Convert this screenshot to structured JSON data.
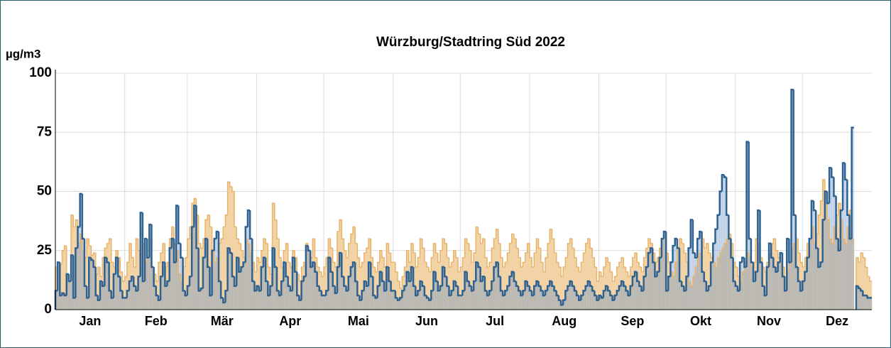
{
  "chart_data": {
    "type": "step-area",
    "title": "Würzburg/Stadtring Süd 2022",
    "y_label": "µg/m3",
    "ylim": [
      0,
      100
    ],
    "yticks": [
      0,
      25,
      50,
      75,
      100
    ],
    "xlim": [
      0,
      365
    ],
    "grid": true,
    "xticks": [
      {
        "value": 0,
        "label": "Jan"
      },
      {
        "value": 31,
        "label": "Feb"
      },
      {
        "value": 59,
        "label": "Mär"
      },
      {
        "value": 90,
        "label": "Apr"
      },
      {
        "value": 120,
        "label": "Mai"
      },
      {
        "value": 151,
        "label": "Jun"
      },
      {
        "value": 181,
        "label": "Jul"
      },
      {
        "value": 212,
        "label": "Aug"
      },
      {
        "value": 243,
        "label": "Sep"
      },
      {
        "value": 273,
        "label": "Okt"
      },
      {
        "value": 304,
        "label": "Nov"
      },
      {
        "value": 334,
        "label": "Dez"
      }
    ],
    "series": [
      {
        "color": "#e8b46c",
        "fill": "#f2d3a6",
        "values": [
          18,
          20,
          19,
          25,
          27,
          15,
          12,
          40,
          35,
          38,
          28,
          32,
          25,
          22,
          30,
          27,
          23,
          24,
          15,
          18,
          14,
          22,
          26,
          28,
          30,
          20,
          18,
          25,
          22,
          16,
          12,
          14,
          20,
          28,
          22,
          18,
          30,
          25,
          35,
          28,
          20,
          22,
          30,
          18,
          15,
          12,
          20,
          24,
          28,
          18,
          20,
          30,
          35,
          28,
          25,
          15,
          12,
          18,
          22,
          30,
          35,
          45,
          47,
          40,
          28,
          26,
          30,
          38,
          40,
          35,
          25,
          20,
          22,
          28,
          30,
          35,
          40,
          54,
          52,
          50,
          35,
          30,
          28,
          25,
          22,
          30,
          28,
          24,
          20,
          16,
          22,
          20,
          25,
          30,
          28,
          18,
          15,
          45,
          38,
          30,
          22,
          18,
          25,
          28,
          20,
          18,
          25,
          22,
          15,
          12,
          18,
          20,
          28,
          25,
          22,
          30,
          22,
          18,
          16,
          14,
          18,
          22,
          30,
          26,
          20,
          18,
          33,
          38,
          30,
          25,
          22,
          28,
          32,
          35,
          28,
          22,
          18,
          20,
          24,
          26,
          30,
          22,
          18,
          16,
          20,
          25,
          22,
          18,
          28,
          24,
          20,
          20,
          16,
          12,
          9,
          14,
          18,
          25,
          20,
          28,
          24,
          18,
          22,
          30,
          26,
          20,
          18,
          16,
          22,
          28,
          24,
          20,
          25,
          30,
          28,
          22,
          18,
          20,
          25,
          22,
          16,
          18,
          22,
          30,
          28,
          25,
          20,
          24,
          35,
          32,
          28,
          30,
          22,
          18,
          20,
          26,
          30,
          34,
          28,
          22,
          18,
          20,
          24,
          28,
          32,
          30,
          26,
          22,
          18,
          20,
          24,
          28,
          22,
          18,
          24,
          30,
          26,
          20,
          16,
          22,
          28,
          34,
          30,
          24,
          20,
          18,
          14,
          18,
          22,
          28,
          30,
          26,
          22,
          18,
          16,
          20,
          24,
          28,
          30,
          26,
          22,
          18,
          12,
          16,
          14,
          18,
          22,
          20,
          16,
          12,
          14,
          18,
          20,
          22,
          18,
          16,
          14,
          18,
          22,
          24,
          20,
          18,
          16,
          22,
          26,
          30,
          28,
          24,
          20,
          22,
          26,
          30,
          33,
          24,
          20,
          16,
          14,
          20,
          26,
          30,
          28,
          24,
          20,
          12,
          10,
          14,
          18,
          22,
          24,
          30,
          26,
          28,
          24,
          22,
          20,
          18,
          22,
          24,
          26,
          28,
          30,
          32,
          28,
          20,
          18,
          14,
          12,
          16,
          20,
          24,
          22,
          18,
          20,
          30,
          28,
          22,
          18,
          16,
          20,
          24,
          28,
          30,
          25,
          22,
          20,
          18,
          14,
          16,
          20,
          26,
          28,
          30,
          24,
          20,
          18,
          22,
          28,
          30,
          35,
          28,
          32,
          40,
          46,
          55,
          50,
          38,
          30,
          28,
          35,
          40,
          45,
          38,
          30,
          28,
          35,
          42,
          30,
          null,
          22,
          20,
          24,
          22,
          18,
          14,
          12
        ]
      },
      {
        "color": "#2e6190",
        "fill": "rgba(110,150,200,0.38)",
        "values": [
          8,
          20,
          6,
          7,
          6,
          15,
          12,
          23,
          5,
          26,
          35,
          49,
          30,
          10,
          5,
          22,
          21,
          18,
          6,
          4,
          12,
          10,
          22,
          20,
          8,
          5,
          15,
          22,
          14,
          8,
          5,
          5,
          8,
          12,
          14,
          10,
          8,
          14,
          41,
          12,
          30,
          22,
          36,
          18,
          10,
          6,
          4,
          14,
          20,
          10,
          12,
          26,
          30,
          20,
          44,
          28,
          22,
          8,
          6,
          10,
          14,
          35,
          44,
          26,
          8,
          9,
          22,
          30,
          18,
          6,
          25,
          30,
          33,
          12,
          5,
          3,
          8,
          26,
          24,
          14,
          10,
          22,
          16,
          18,
          20,
          35,
          42,
          30,
          12,
          8,
          10,
          8,
          18,
          22,
          12,
          6,
          10,
          26,
          18,
          8,
          6,
          12,
          20,
          14,
          10,
          8,
          22,
          16,
          6,
          4,
          12,
          14,
          27,
          25,
          18,
          20,
          16,
          10,
          8,
          6,
          6,
          8,
          22,
          16,
          10,
          7,
          18,
          24,
          14,
          10,
          8,
          14,
          18,
          20,
          12,
          6,
          4,
          8,
          12,
          10,
          20,
          14,
          6,
          5,
          10,
          16,
          12,
          8,
          18,
          12,
          8,
          8,
          5,
          4,
          5,
          8,
          10,
          16,
          12,
          18,
          10,
          6,
          8,
          12,
          10,
          6,
          5,
          4,
          8,
          16,
          12,
          8,
          10,
          18,
          14,
          10,
          6,
          8,
          12,
          10,
          6,
          6,
          8,
          16,
          12,
          10,
          8,
          12,
          20,
          18,
          12,
          14,
          8,
          6,
          8,
          12,
          18,
          20,
          14,
          8,
          6,
          8,
          10,
          14,
          16,
          12,
          10,
          8,
          6,
          8,
          12,
          10,
          8,
          6,
          10,
          12,
          10,
          8,
          6,
          8,
          10,
          12,
          10,
          8,
          6,
          4,
          2,
          4,
          8,
          10,
          12,
          10,
          8,
          6,
          4,
          6,
          8,
          10,
          12,
          10,
          8,
          6,
          4,
          6,
          5,
          8,
          10,
          8,
          6,
          4,
          6,
          8,
          10,
          12,
          10,
          8,
          6,
          10,
          14,
          16,
          12,
          10,
          8,
          14,
          18,
          24,
          26,
          20,
          14,
          16,
          22,
          30,
          33,
          8,
          14,
          20,
          27,
          30,
          26,
          12,
          10,
          8,
          14,
          26,
          38,
          24,
          22,
          30,
          33,
          16,
          12,
          8,
          10,
          20,
          28,
          34,
          40,
          50,
          57,
          56,
          40,
          30,
          22,
          12,
          10,
          8,
          20,
          22,
          18,
          71,
          30,
          20,
          12,
          16,
          42,
          20,
          10,
          6,
          18,
          28,
          22,
          18,
          16,
          20,
          24,
          14,
          8,
          30,
          20,
          93,
          40,
          18,
          12,
          8,
          12,
          16,
          22,
          30,
          46,
          42,
          26,
          18,
          20,
          38,
          50,
          45,
          60,
          56,
          48,
          30,
          25,
          42,
          62,
          55,
          40,
          30,
          77,
          null,
          10,
          9,
          8,
          6,
          6,
          5,
          5
        ]
      }
    ]
  }
}
